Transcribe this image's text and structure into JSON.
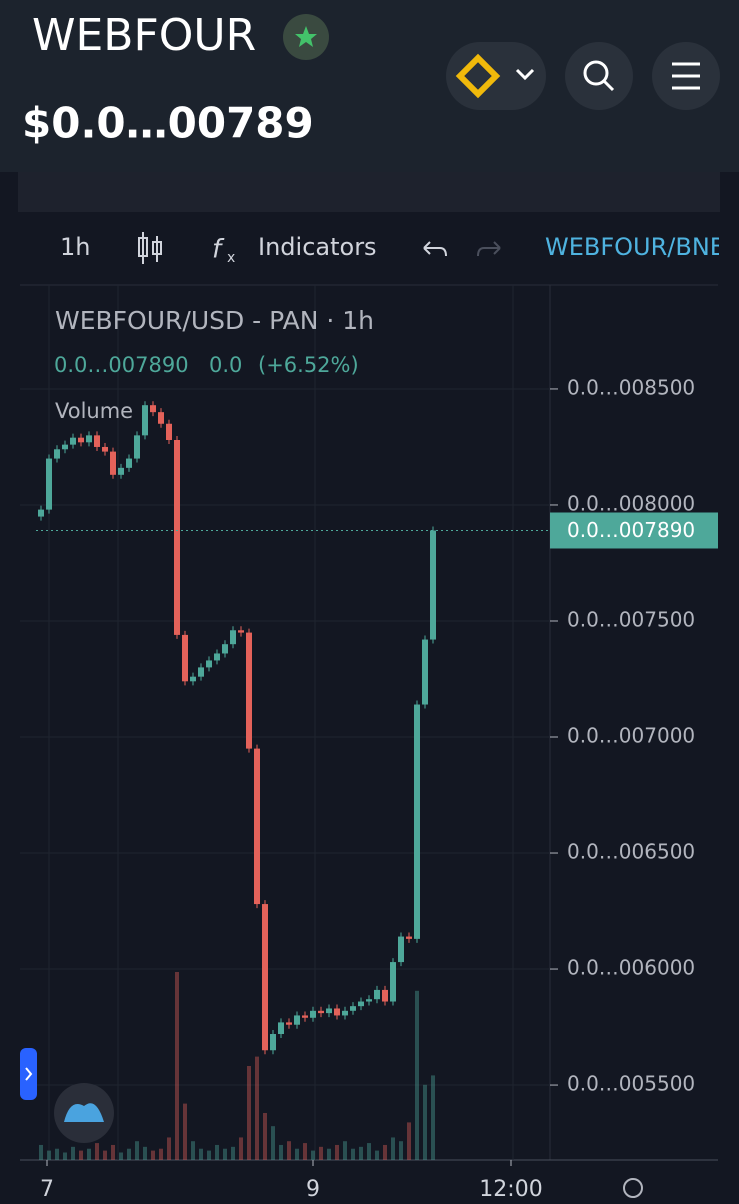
{
  "header": {
    "title": "WEBFOUR",
    "price": "$0.0…00789"
  },
  "toolbar": {
    "interval": "1h",
    "indicators": "Indicators",
    "symbol": "WEBFOUR/BNB"
  },
  "chart": {
    "type": "candlestick",
    "legend": {
      "title": "WEBFOUR/USD - PAN · 1h",
      "last": "0.0…007890",
      "change": "0.0",
      "change_pct": "(+6.52%)",
      "volume": "Volume"
    },
    "up_color": "#4ea89a",
    "down_color": "#e4625a",
    "open": [
      0.00795,
      0.00798,
      0.0082,
      0.00824,
      0.00826,
      0.00829,
      0.00827,
      0.0083,
      0.00825,
      0.00823,
      0.00813,
      0.00816,
      0.0082,
      0.0083,
      0.00843,
      0.0084,
      0.00835,
      0.00828,
      0.00744,
      0.00724,
      0.00726,
      0.0073,
      0.00733,
      0.00736,
      0.0074,
      0.00746,
      0.00745,
      0.00695,
      0.00628,
      0.00565,
      0.00572,
      0.00577,
      0.00576,
      0.0058,
      0.00579,
      0.00582,
      0.00581,
      0.00583,
      0.0058,
      0.00582,
      0.00584,
      0.00586,
      0.00587,
      0.00591,
      0.00586,
      0.00603,
      0.00614,
      0.00613,
      0.00714,
      0.00742
    ],
    "close": [
      0.00798,
      0.0082,
      0.00824,
      0.00826,
      0.00829,
      0.00827,
      0.0083,
      0.00825,
      0.00823,
      0.00813,
      0.00816,
      0.0082,
      0.0083,
      0.00843,
      0.0084,
      0.00835,
      0.00828,
      0.00744,
      0.00724,
      0.00726,
      0.0073,
      0.00733,
      0.00736,
      0.0074,
      0.00746,
      0.00745,
      0.00695,
      0.00628,
      0.00565,
      0.00572,
      0.00577,
      0.00576,
      0.0058,
      0.00579,
      0.00582,
      0.00581,
      0.00583,
      0.0058,
      0.00582,
      0.00584,
      0.00586,
      0.00587,
      0.00591,
      0.00586,
      0.00603,
      0.00614,
      0.00613,
      0.00714,
      0.00742,
      0.00789
    ],
    "volume": [
      8,
      5,
      6,
      4,
      7,
      5,
      6,
      9,
      5,
      8,
      4,
      6,
      10,
      7,
      5,
      6,
      12,
      100,
      30,
      10,
      6,
      5,
      8,
      6,
      7,
      12,
      50,
      55,
      25,
      18,
      8,
      10,
      6,
      9,
      5,
      7,
      6,
      8,
      10,
      6,
      7,
      9,
      5,
      8,
      12,
      10,
      20,
      90,
      40,
      45
    ],
    "ylim": [
      0.005177,
      0.008948
    ],
    "yticks": [
      {
        "value": 0.0085,
        "label": "0.0…008500"
      },
      {
        "value": 0.008,
        "label": "0.0…008000"
      },
      {
        "value": 0.0075,
        "label": "0.0…007500"
      },
      {
        "value": 0.007,
        "label": "0.0…007000"
      },
      {
        "value": 0.0065,
        "label": "0.0…006500"
      },
      {
        "value": 0.006,
        "label": "0.0…006000"
      },
      {
        "value": 0.0055,
        "label": "0.0…005500"
      }
    ],
    "last_price": {
      "value": 0.00789,
      "label": "0.0…007890"
    },
    "xtick_labels": [
      "7",
      "9",
      "12:00"
    ]
  }
}
